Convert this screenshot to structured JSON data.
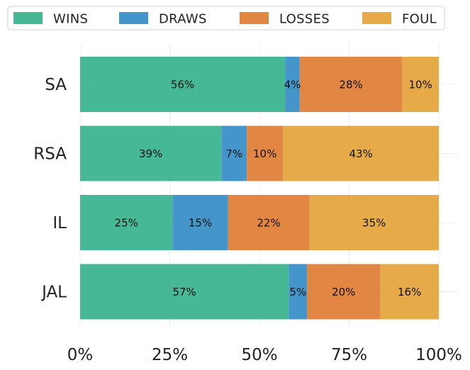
{
  "chart_data": {
    "type": "bar",
    "orientation": "horizontal",
    "stacked": true,
    "categories": [
      "SA",
      "RSA",
      "IL",
      "JAL"
    ],
    "series": [
      {
        "name": "WINS",
        "color": "#3cb48f",
        "values": [
          56,
          39,
          25,
          57
        ]
      },
      {
        "name": "DRAWS",
        "color": "#3a8fc6",
        "values": [
          4,
          7,
          15,
          5
        ]
      },
      {
        "name": "LOSSES",
        "color": "#e07f3a",
        "values": [
          28,
          10,
          22,
          20
        ]
      },
      {
        "name": "FOUL",
        "color": "#e5a73e",
        "values": [
          10,
          43,
          35,
          16
        ]
      }
    ],
    "xlim": [
      0,
      100
    ],
    "xticks": [
      "0%",
      "25%",
      "50%",
      "75%",
      "100%"
    ],
    "value_suffix": "%",
    "legend_position": "top",
    "grid": true,
    "title": "",
    "xlabel": "",
    "ylabel": ""
  }
}
